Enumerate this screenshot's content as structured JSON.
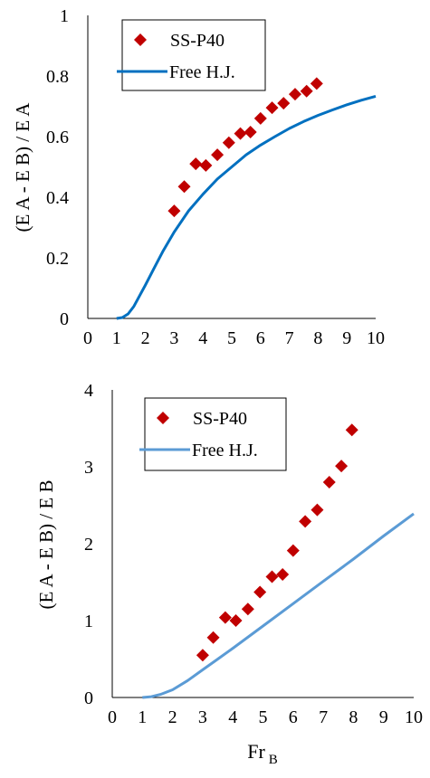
{
  "chart_data": [
    {
      "type": "scatter",
      "ylabel": "(E A - E B) / E A",
      "xlabel": "",
      "xlim": [
        0,
        10
      ],
      "ylim": [
        0,
        1
      ],
      "x_ticks": [
        "0",
        "1",
        "2",
        "3",
        "4",
        "5",
        "6",
        "7",
        "8",
        "9",
        "10"
      ],
      "y_ticks": [
        "0",
        "0.2",
        "0.4",
        "0.6",
        "0.8",
        "1"
      ],
      "legend_position": "top-left",
      "series": [
        {
          "name": "SS-P40",
          "kind": "markers",
          "marker": "diamond",
          "color": "#C00000",
          "x": [
            3.0,
            3.35,
            3.75,
            4.1,
            4.5,
            4.9,
            5.3,
            5.65,
            6.0,
            6.4,
            6.8,
            7.2,
            7.6,
            7.95
          ],
          "y": [
            0.355,
            0.435,
            0.51,
            0.505,
            0.54,
            0.58,
            0.61,
            0.615,
            0.66,
            0.695,
            0.71,
            0.74,
            0.75,
            0.775
          ]
        },
        {
          "name": "Free H.J.",
          "kind": "line",
          "color": "#0070C0",
          "x": [
            1.0,
            1.2,
            1.4,
            1.6,
            1.8,
            2.0,
            2.3,
            2.6,
            3.0,
            3.5,
            4.0,
            4.5,
            5.0,
            5.5,
            6.0,
            6.5,
            7.0,
            7.5,
            8.0,
            8.5,
            9.0,
            9.5,
            10.0
          ],
          "y": [
            0.0,
            0.003,
            0.015,
            0.04,
            0.075,
            0.11,
            0.165,
            0.22,
            0.285,
            0.355,
            0.41,
            0.46,
            0.5,
            0.54,
            0.572,
            0.6,
            0.627,
            0.65,
            0.67,
            0.688,
            0.705,
            0.72,
            0.733
          ]
        }
      ]
    },
    {
      "type": "scatter",
      "ylabel": "(E A - E B) / E B",
      "xlabel": "Fr",
      "xlabel_sub": "B",
      "xlim": [
        0,
        10
      ],
      "ylim": [
        0,
        4
      ],
      "x_ticks": [
        "0",
        "1",
        "2",
        "3",
        "4",
        "5",
        "6",
        "7",
        "8",
        "9",
        "10"
      ],
      "y_ticks": [
        "0",
        "1",
        "2",
        "3",
        "4"
      ],
      "legend_position": "top-left",
      "series": [
        {
          "name": "SS-P40",
          "kind": "markers",
          "marker": "diamond",
          "color": "#C00000",
          "x": [
            3.0,
            3.35,
            3.75,
            4.1,
            4.5,
            4.9,
            5.3,
            5.65,
            6.0,
            6.4,
            6.8,
            7.2,
            7.6,
            7.95
          ],
          "y": [
            0.55,
            0.78,
            1.04,
            1.0,
            1.15,
            1.37,
            1.57,
            1.6,
            1.91,
            2.29,
            2.44,
            2.8,
            3.01,
            3.48
          ]
        },
        {
          "name": "Free H.J.",
          "kind": "line",
          "color": "#5B9BD5",
          "x": [
            1.0,
            1.3,
            1.6,
            2.0,
            2.5,
            3.0,
            3.5,
            4.0,
            5.0,
            6.0,
            7.0,
            8.0,
            9.0,
            10.0
          ],
          "y": [
            0.0,
            0.01,
            0.04,
            0.1,
            0.22,
            0.36,
            0.5,
            0.64,
            0.93,
            1.22,
            1.51,
            1.8,
            2.1,
            2.39
          ]
        }
      ]
    }
  ]
}
